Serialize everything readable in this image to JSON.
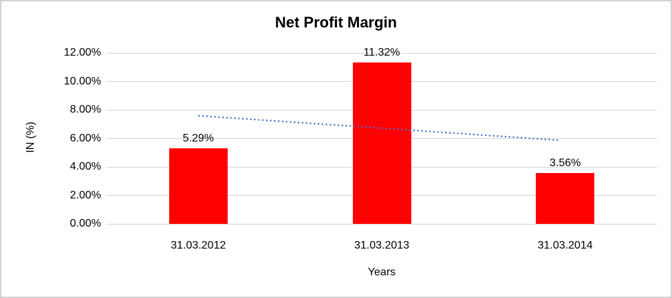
{
  "chart_data": {
    "type": "bar",
    "title": "Net Profit Margin",
    "categories": [
      "31.03.2012",
      "31.03.2013",
      "31.03.2014"
    ],
    "values": [
      5.29,
      11.32,
      3.56
    ],
    "value_labels": [
      "5.29%",
      "11.32%",
      "3.56%"
    ],
    "xlabel": "Years",
    "ylabel": "IN (%)",
    "ylim": [
      0,
      12
    ],
    "yticks": [
      0,
      2,
      4,
      6,
      8,
      10,
      12
    ],
    "ytick_labels": [
      "0.00%",
      "2.00%",
      "4.00%",
      "6.00%",
      "8.00%",
      "10.00%",
      "12.00%"
    ],
    "grid": true,
    "legend": "none",
    "bar_color": "#ff0000",
    "gridline_color": "#d3d3d3",
    "text_color": "#000000",
    "trendline": {
      "type": "linear",
      "style": "dotted",
      "color": "#4472c4",
      "start_value": 7.59,
      "end_value": 5.86
    }
  }
}
